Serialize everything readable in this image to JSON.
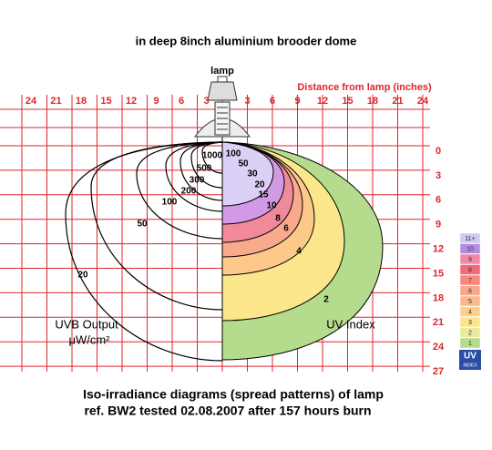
{
  "title": "in deep 8inch aluminium brooder dome",
  "lamp_label": "lamp",
  "axis_title": "Distance from lamp (inches)",
  "top_ticks_left": [
    24,
    21,
    18,
    15,
    12,
    9,
    6,
    3
  ],
  "top_ticks_right": [
    3,
    6,
    9,
    12,
    15,
    18,
    21,
    24
  ],
  "right_ticks": [
    0,
    3,
    6,
    9,
    12,
    15,
    18,
    21,
    24,
    27
  ],
  "uvb_labels": [
    1000,
    500,
    300,
    200,
    100,
    50,
    20
  ],
  "uv_index_labels": [
    100,
    50,
    30,
    20,
    15,
    10,
    8,
    6,
    4,
    2
  ],
  "uvb_title": "UVB Output",
  "uvb_unit": "μW/cm²",
  "uv_index_title": "UV Index",
  "legend": [
    "11+",
    "10",
    "9",
    "8",
    "7",
    "6",
    "5",
    "4",
    "3",
    "2",
    "1"
  ],
  "legend_badge": [
    "UV",
    "INDEX"
  ],
  "caption": [
    "Iso-irradiance diagrams (spread patterns) of lamp",
    "ref. BW2  tested 02.08.2007 after 157 hours burn"
  ]
}
